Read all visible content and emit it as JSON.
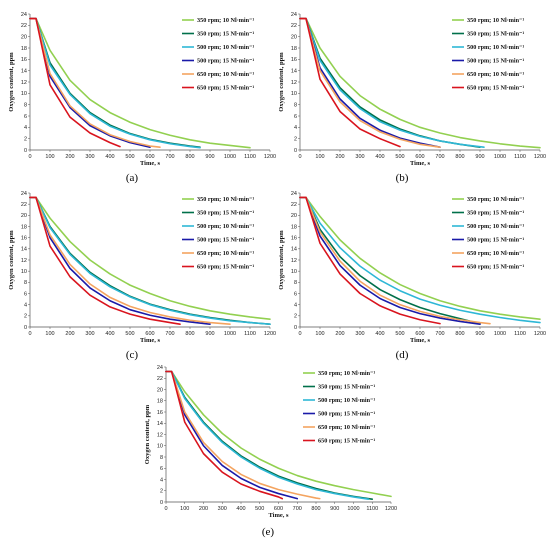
{
  "figure": {
    "series_names": [
      "350 rpm; 10 Nl·min⁻¹",
      "350 rpm; 15 Nl·min⁻¹",
      "500 rpm; 10 Nl·min⁻¹",
      "500 rpm; 15 Nl·min⁻¹",
      "650 rpm; 10 Nl·min⁻¹",
      "650 rpm; 15 Nl·min⁻¹"
    ],
    "series_colors": [
      "#92d050",
      "#00704a",
      "#2eb7d6",
      "#1a1aa8",
      "#f4a460",
      "#d9141e"
    ]
  },
  "chart_data": [
    {
      "type": "line",
      "label": "(a)",
      "xlabel": "Time, s",
      "ylabel": "Oxygen content, ppm",
      "xlim": [
        0,
        1200
      ],
      "ylim": [
        0,
        24
      ],
      "xticks": [
        0,
        100,
        200,
        300,
        400,
        500,
        600,
        700,
        800,
        900,
        1000,
        1100,
        1200
      ],
      "yticks": [
        0,
        2,
        4,
        6,
        8,
        10,
        12,
        14,
        16,
        18,
        20,
        22,
        24
      ],
      "grid": false,
      "legend": "top-right",
      "series": [
        {
          "name": "350 rpm; 10 Nl·min⁻¹",
          "x": [
            0,
            30,
            100,
            200,
            300,
            400,
            500,
            600,
            700,
            800,
            900,
            1000,
            1100
          ],
          "y": [
            23.2,
            23.2,
            17.6,
            12.3,
            8.9,
            6.6,
            4.9,
            3.6,
            2.6,
            1.8,
            1.2,
            0.8,
            0.4
          ]
        },
        {
          "name": "350 rpm; 15 Nl·min⁻¹",
          "x": [
            0,
            30,
            100,
            200,
            300,
            400,
            500,
            600,
            700,
            800,
            850
          ],
          "y": [
            23.2,
            23.2,
            15.4,
            10.0,
            6.6,
            4.4,
            2.9,
            1.9,
            1.2,
            0.7,
            0.5
          ]
        },
        {
          "name": "500 rpm; 10 Nl·min⁻¹",
          "x": [
            0,
            30,
            100,
            200,
            300,
            400,
            500,
            600,
            700,
            800,
            850
          ],
          "y": [
            23.2,
            23.2,
            15.0,
            9.8,
            6.4,
            4.2,
            2.8,
            1.8,
            1.1,
            0.6,
            0.4
          ]
        },
        {
          "name": "500 rpm; 15 Nl·min⁻¹",
          "x": [
            0,
            30,
            100,
            200,
            300,
            400,
            500,
            600
          ],
          "y": [
            23.2,
            23.2,
            13.0,
            7.5,
            4.3,
            2.5,
            1.3,
            0.5
          ]
        },
        {
          "name": "650 rpm; 10 Nl·min⁻¹",
          "x": [
            0,
            30,
            100,
            200,
            300,
            400,
            500,
            600,
            650
          ],
          "y": [
            23.2,
            23.2,
            13.5,
            7.8,
            4.6,
            2.7,
            1.5,
            0.7,
            0.5
          ]
        },
        {
          "name": "650 rpm; 15 Nl·min⁻¹",
          "x": [
            0,
            30,
            100,
            200,
            300,
            400,
            450
          ],
          "y": [
            23.2,
            23.2,
            11.5,
            5.8,
            3.0,
            1.3,
            0.6
          ]
        }
      ]
    },
    {
      "type": "line",
      "label": "(b)",
      "xlabel": "Time, s",
      "ylabel": "Oxygen content, ppm",
      "xlim": [
        0,
        1200
      ],
      "ylim": [
        0,
        24
      ],
      "xticks": [
        0,
        100,
        200,
        300,
        400,
        500,
        600,
        700,
        800,
        900,
        1000,
        1100,
        1200
      ],
      "yticks": [
        0,
        2,
        4,
        6,
        8,
        10,
        12,
        14,
        16,
        18,
        20,
        22,
        24
      ],
      "grid": false,
      "legend": "top-right",
      "series": [
        {
          "name": "350 rpm; 10 Nl·min⁻¹",
          "x": [
            0,
            30,
            100,
            200,
            300,
            400,
            500,
            600,
            700,
            800,
            900,
            1000,
            1100,
            1200
          ],
          "y": [
            23.2,
            23.2,
            18.0,
            13.0,
            9.6,
            7.2,
            5.4,
            4.0,
            3.0,
            2.2,
            1.6,
            1.1,
            0.7,
            0.4
          ]
        },
        {
          "name": "350 rpm; 15 Nl·min⁻¹",
          "x": [
            0,
            30,
            100,
            200,
            300,
            400,
            500,
            600,
            700,
            800,
            900
          ],
          "y": [
            23.2,
            23.2,
            16.2,
            11.0,
            7.6,
            5.3,
            3.7,
            2.5,
            1.6,
            1.0,
            0.5
          ]
        },
        {
          "name": "500 rpm; 10 Nl·min⁻¹",
          "x": [
            0,
            30,
            100,
            200,
            300,
            400,
            500,
            600,
            700,
            800,
            920
          ],
          "y": [
            23.2,
            23.2,
            15.8,
            10.6,
            7.3,
            5.0,
            3.5,
            2.4,
            1.6,
            1.0,
            0.5
          ]
        },
        {
          "name": "500 rpm; 15 Nl·min⁻¹",
          "x": [
            0,
            30,
            100,
            200,
            300,
            400,
            500,
            600,
            700
          ],
          "y": [
            23.2,
            23.2,
            14.5,
            9.0,
            5.6,
            3.5,
            2.1,
            1.2,
            0.5
          ]
        },
        {
          "name": "650 rpm; 10 Nl·min⁻¹",
          "x": [
            0,
            30,
            100,
            200,
            300,
            400,
            500,
            600,
            700
          ],
          "y": [
            23.2,
            23.2,
            14.0,
            8.5,
            5.2,
            3.2,
            1.9,
            1.0,
            0.5
          ]
        },
        {
          "name": "650 rpm; 15 Nl·min⁻¹",
          "x": [
            0,
            30,
            100,
            200,
            300,
            400,
            500
          ],
          "y": [
            23.2,
            23.2,
            12.5,
            6.8,
            3.7,
            2.0,
            0.6
          ]
        }
      ]
    },
    {
      "type": "line",
      "label": "(c)",
      "xlabel": "Time, s",
      "ylabel": "Oxygen content, ppm",
      "xlim": [
        0,
        1200
      ],
      "ylim": [
        0,
        24
      ],
      "xticks": [
        0,
        100,
        200,
        300,
        400,
        500,
        600,
        700,
        800,
        900,
        1000,
        1100,
        1200
      ],
      "yticks": [
        0,
        2,
        4,
        6,
        8,
        10,
        12,
        14,
        16,
        18,
        20,
        22,
        24
      ],
      "grid": false,
      "legend": "top-right",
      "series": [
        {
          "name": "350 rpm; 10 Nl·min⁻¹",
          "x": [
            0,
            30,
            100,
            200,
            300,
            400,
            500,
            600,
            700,
            800,
            900,
            1000,
            1100,
            1200
          ],
          "y": [
            23.2,
            23.2,
            19.5,
            15.3,
            12.0,
            9.5,
            7.5,
            6.0,
            4.7,
            3.7,
            2.9,
            2.3,
            1.8,
            1.4
          ]
        },
        {
          "name": "350 rpm; 15 Nl·min⁻¹",
          "x": [
            0,
            30,
            100,
            200,
            300,
            400,
            500,
            600,
            700,
            800,
            900,
            1000,
            1100,
            1200
          ],
          "y": [
            23.2,
            23.2,
            18.0,
            13.2,
            9.8,
            7.4,
            5.5,
            4.1,
            3.1,
            2.3,
            1.7,
            1.2,
            0.8,
            0.5
          ]
        },
        {
          "name": "500 rpm; 10 Nl·min⁻¹",
          "x": [
            0,
            30,
            100,
            200,
            300,
            400,
            500,
            600,
            700,
            800,
            900,
            1000,
            1100,
            1200
          ],
          "y": [
            23.2,
            23.2,
            17.8,
            13.0,
            9.6,
            7.2,
            5.4,
            4.0,
            3.0,
            2.2,
            1.6,
            1.1,
            0.8,
            0.5
          ]
        },
        {
          "name": "500 rpm; 15 Nl·min⁻¹",
          "x": [
            0,
            30,
            100,
            200,
            300,
            400,
            500,
            600,
            700,
            800,
            900
          ],
          "y": [
            23.2,
            23.2,
            16.0,
            10.5,
            7.0,
            4.7,
            3.1,
            2.1,
            1.4,
            0.9,
            0.5
          ]
        },
        {
          "name": "650 rpm; 10 Nl·min⁻¹",
          "x": [
            0,
            30,
            100,
            200,
            300,
            400,
            500,
            600,
            700,
            800,
            900,
            1000
          ],
          "y": [
            23.2,
            23.2,
            16.5,
            11.2,
            7.7,
            5.3,
            3.7,
            2.6,
            1.8,
            1.2,
            0.8,
            0.5
          ]
        },
        {
          "name": "650 rpm; 15 Nl·min⁻¹",
          "x": [
            0,
            30,
            100,
            200,
            300,
            400,
            500,
            600,
            700,
            750
          ],
          "y": [
            23.2,
            23.2,
            14.5,
            9.0,
            5.7,
            3.6,
            2.3,
            1.4,
            0.8,
            0.5
          ]
        }
      ]
    },
    {
      "type": "line",
      "label": "(d)",
      "xlabel": "Time, s",
      "ylabel": "Oxygen content, ppm",
      "xlim": [
        0,
        1200
      ],
      "ylim": [
        0,
        24
      ],
      "xticks": [
        0,
        100,
        200,
        300,
        400,
        500,
        600,
        700,
        800,
        900,
        1000,
        1100,
        1200
      ],
      "yticks": [
        0,
        2,
        4,
        6,
        8,
        10,
        12,
        14,
        16,
        18,
        20,
        22,
        24
      ],
      "grid": false,
      "legend": "top-right",
      "series": [
        {
          "name": "350 rpm; 10 Nl·min⁻¹",
          "x": [
            0,
            30,
            100,
            200,
            300,
            400,
            500,
            600,
            700,
            800,
            900,
            1000,
            1100,
            1200
          ],
          "y": [
            23.2,
            23.2,
            19.8,
            15.6,
            12.3,
            9.7,
            7.6,
            6.0,
            4.7,
            3.7,
            2.9,
            2.3,
            1.8,
            1.4
          ]
        },
        {
          "name": "350 rpm; 15 Nl·min⁻¹",
          "x": [
            0,
            30,
            100,
            200,
            300,
            400,
            500,
            600,
            700,
            800,
            900
          ],
          "y": [
            23.2,
            23.2,
            17.5,
            12.6,
            9.2,
            6.7,
            4.9,
            3.5,
            2.4,
            1.5,
            0.6
          ]
        },
        {
          "name": "500 rpm; 10 Nl·min⁻¹",
          "x": [
            0,
            30,
            100,
            200,
            300,
            400,
            500,
            600,
            700,
            800,
            900,
            1000,
            1100,
            1200
          ],
          "y": [
            23.2,
            23.2,
            18.6,
            14.2,
            10.9,
            8.4,
            6.5,
            5.0,
            3.9,
            3.0,
            2.3,
            1.7,
            1.2,
            0.8
          ]
        },
        {
          "name": "500 rpm; 15 Nl·min⁻¹",
          "x": [
            0,
            30,
            100,
            200,
            300,
            400,
            500,
            600,
            700,
            800,
            900
          ],
          "y": [
            23.2,
            23.2,
            16.3,
            11.0,
            7.5,
            5.1,
            3.5,
            2.4,
            1.6,
            1.0,
            0.5
          ]
        },
        {
          "name": "650 rpm; 10 Nl·min⁻¹",
          "x": [
            0,
            30,
            100,
            200,
            300,
            400,
            500,
            600,
            700,
            800,
            900,
            950
          ],
          "y": [
            23.2,
            23.2,
            17.0,
            11.8,
            8.2,
            5.7,
            4.0,
            2.8,
            1.9,
            1.3,
            0.8,
            0.6
          ]
        },
        {
          "name": "650 rpm; 15 Nl·min⁻¹",
          "x": [
            0,
            30,
            100,
            200,
            300,
            400,
            500,
            600,
            700
          ],
          "y": [
            23.2,
            23.2,
            15.0,
            9.5,
            6.0,
            3.8,
            2.3,
            1.3,
            0.6
          ]
        }
      ]
    },
    {
      "type": "line",
      "label": "(e)",
      "xlabel": "Time, s",
      "ylabel": "Oxygen content, ppm",
      "xlim": [
        0,
        1200
      ],
      "ylim": [
        0,
        24
      ],
      "xticks": [
        0,
        100,
        200,
        300,
        400,
        500,
        600,
        700,
        800,
        900,
        1000,
        1100,
        1200
      ],
      "yticks": [
        0,
        2,
        4,
        6,
        8,
        10,
        12,
        14,
        16,
        18,
        20,
        22,
        24
      ],
      "grid": false,
      "legend": "top-right",
      "series": [
        {
          "name": "350 rpm; 10 Nl·min⁻¹",
          "x": [
            0,
            30,
            100,
            200,
            300,
            400,
            500,
            600,
            700,
            800,
            900,
            1000,
            1100,
            1200
          ],
          "y": [
            23.2,
            23.2,
            19.6,
            15.5,
            12.2,
            9.6,
            7.6,
            6.0,
            4.7,
            3.7,
            2.9,
            2.2,
            1.6,
            1.0
          ]
        },
        {
          "name": "350 rpm; 15 Nl·min⁻¹",
          "x": [
            0,
            30,
            100,
            200,
            300,
            400,
            500,
            600,
            700,
            800,
            900,
            1000,
            1100
          ],
          "y": [
            23.2,
            23.2,
            18.6,
            14.2,
            10.8,
            8.2,
            6.2,
            4.6,
            3.4,
            2.4,
            1.6,
            1.0,
            0.5
          ]
        },
        {
          "name": "500 rpm; 10 Nl·min⁻¹",
          "x": [
            0,
            30,
            100,
            200,
            300,
            400,
            500,
            600,
            700,
            800,
            900,
            1000,
            1080
          ],
          "y": [
            23.2,
            23.2,
            18.4,
            14.0,
            10.6,
            8.0,
            6.0,
            4.4,
            3.2,
            2.2,
            1.5,
            0.9,
            0.5
          ]
        },
        {
          "name": "500 rpm; 15 Nl·min⁻¹",
          "x": [
            0,
            30,
            100,
            200,
            300,
            400,
            500,
            600,
            700
          ],
          "y": [
            23.2,
            23.2,
            15.5,
            10.0,
            6.5,
            4.2,
            2.6,
            1.5,
            0.6
          ]
        },
        {
          "name": "650 rpm; 10 Nl·min⁻¹",
          "x": [
            0,
            30,
            100,
            200,
            300,
            400,
            500,
            600,
            700,
            800,
            820
          ],
          "y": [
            23.2,
            23.2,
            16.0,
            10.6,
            7.2,
            4.9,
            3.3,
            2.2,
            1.4,
            0.7,
            0.6
          ]
        },
        {
          "name": "650 rpm; 15 Nl·min⁻¹",
          "x": [
            0,
            30,
            100,
            200,
            300,
            400,
            500,
            600,
            620
          ],
          "y": [
            23.2,
            23.2,
            14.2,
            8.6,
            5.3,
            3.2,
            1.9,
            0.9,
            0.6
          ]
        }
      ]
    }
  ]
}
